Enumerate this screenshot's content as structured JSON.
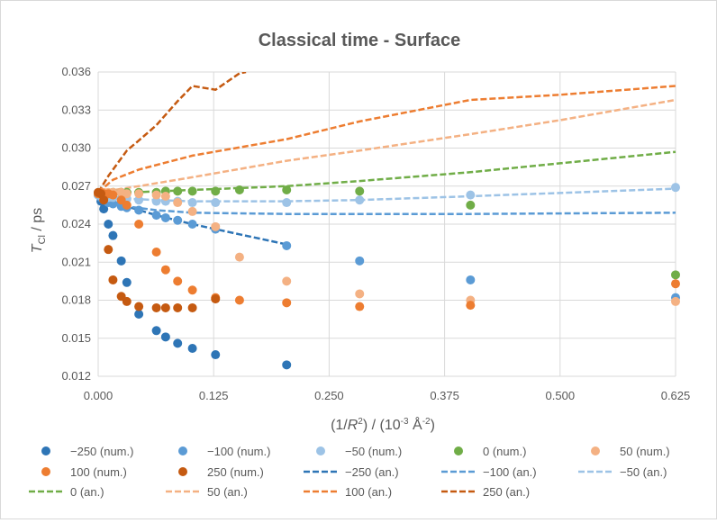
{
  "chart_data": {
    "type": "scatter",
    "title": "Classical time - Surface",
    "ylabel": "T_Cl / ps",
    "xlabel": "(1/R²) / (10⁻³ Å⁻²)",
    "xlim": [
      0,
      0.625
    ],
    "ylim": [
      0.012,
      0.036
    ],
    "x_ticks": [
      "0.000",
      "0.125",
      "0.250",
      "0.375",
      "0.500",
      "0.625"
    ],
    "y_ticks": [
      "0.012",
      "0.015",
      "0.018",
      "0.021",
      "0.024",
      "0.027",
      "0.030",
      "0.033",
      "0.036"
    ],
    "grid": true,
    "legend_position": "bottom",
    "series": [
      {
        "name": "−250 (num.)",
        "kind": "points",
        "color": "#2e75b6",
        "points": [
          [
            0,
            0.0263
          ],
          [
            0.003,
            0.0258
          ],
          [
            0.006,
            0.0252
          ],
          [
            0.011,
            0.024
          ],
          [
            0.016,
            0.0231
          ],
          [
            0.025,
            0.0211
          ],
          [
            0.031,
            0.0194
          ],
          [
            0.044,
            0.0169
          ],
          [
            0.063,
            0.0156
          ],
          [
            0.073,
            0.0151
          ],
          [
            0.086,
            0.0146
          ],
          [
            0.102,
            0.0142
          ],
          [
            0.127,
            0.0137
          ],
          [
            0.204,
            0.0129
          ]
        ]
      },
      {
        "name": "−100 (num.)",
        "kind": "points",
        "color": "#5b9bd5",
        "points": [
          [
            0,
            0.0263
          ],
          [
            0.003,
            0.0261
          ],
          [
            0.006,
            0.0259
          ],
          [
            0.011,
            0.0257
          ],
          [
            0.016,
            0.0256
          ],
          [
            0.025,
            0.0254
          ],
          [
            0.031,
            0.0253
          ],
          [
            0.044,
            0.0251
          ],
          [
            0.063,
            0.0247
          ],
          [
            0.073,
            0.0245
          ],
          [
            0.086,
            0.0243
          ],
          [
            0.102,
            0.024
          ],
          [
            0.127,
            0.0236
          ],
          [
            0.204,
            0.0223
          ],
          [
            0.283,
            0.0211
          ],
          [
            0.403,
            0.0196
          ],
          [
            0.625,
            0.0182
          ]
        ]
      },
      {
        "name": "−50 (num.)",
        "kind": "points",
        "color": "#9dc3e6",
        "points": [
          [
            0,
            0.0263
          ],
          [
            0.003,
            0.0262
          ],
          [
            0.006,
            0.0262
          ],
          [
            0.011,
            0.0261
          ],
          [
            0.016,
            0.0261
          ],
          [
            0.025,
            0.026
          ],
          [
            0.031,
            0.026
          ],
          [
            0.044,
            0.0259
          ],
          [
            0.063,
            0.0258
          ],
          [
            0.073,
            0.0258
          ],
          [
            0.086,
            0.0258
          ],
          [
            0.102,
            0.0257
          ],
          [
            0.127,
            0.0257
          ],
          [
            0.204,
            0.0257
          ],
          [
            0.283,
            0.0259
          ],
          [
            0.403,
            0.0263
          ],
          [
            0.625,
            0.0269
          ]
        ]
      },
      {
        "name": "0 (num.)",
        "kind": "points",
        "color": "#70ad47",
        "points": [
          [
            0,
            0.0264
          ],
          [
            0.003,
            0.0264
          ],
          [
            0.006,
            0.0264
          ],
          [
            0.011,
            0.0264
          ],
          [
            0.016,
            0.0265
          ],
          [
            0.025,
            0.0265
          ],
          [
            0.031,
            0.0265
          ],
          [
            0.044,
            0.0265
          ],
          [
            0.063,
            0.0265
          ],
          [
            0.073,
            0.0266
          ],
          [
            0.086,
            0.0266
          ],
          [
            0.102,
            0.0266
          ],
          [
            0.127,
            0.0266
          ],
          [
            0.153,
            0.0267
          ],
          [
            0.204,
            0.0267
          ],
          [
            0.283,
            0.0266
          ],
          [
            0.403,
            0.0255
          ],
          [
            0.625,
            0.02
          ]
        ]
      },
      {
        "name": "50 (num.)",
        "kind": "points",
        "color": "#f4b183",
        "points": [
          [
            0,
            0.0264
          ],
          [
            0.003,
            0.0265
          ],
          [
            0.006,
            0.0265
          ],
          [
            0.011,
            0.0265
          ],
          [
            0.016,
            0.0265
          ],
          [
            0.025,
            0.0265
          ],
          [
            0.031,
            0.0264
          ],
          [
            0.044,
            0.0264
          ],
          [
            0.063,
            0.0263
          ],
          [
            0.073,
            0.0262
          ],
          [
            0.086,
            0.0257
          ],
          [
            0.102,
            0.025
          ],
          [
            0.127,
            0.0238
          ],
          [
            0.153,
            0.0214
          ],
          [
            0.204,
            0.0195
          ],
          [
            0.283,
            0.0185
          ],
          [
            0.403,
            0.018
          ],
          [
            0.625,
            0.0179
          ]
        ]
      },
      {
        "name": "100 (num.)",
        "kind": "points",
        "color": "#ed7d31",
        "points": [
          [
            0,
            0.0264
          ],
          [
            0.003,
            0.0265
          ],
          [
            0.006,
            0.0264
          ],
          [
            0.011,
            0.0264
          ],
          [
            0.016,
            0.0263
          ],
          [
            0.025,
            0.0259
          ],
          [
            0.031,
            0.0255
          ],
          [
            0.044,
            0.024
          ],
          [
            0.063,
            0.0218
          ],
          [
            0.073,
            0.0204
          ],
          [
            0.086,
            0.0195
          ],
          [
            0.102,
            0.0188
          ],
          [
            0.127,
            0.0182
          ],
          [
            0.153,
            0.018
          ],
          [
            0.204,
            0.0178
          ],
          [
            0.283,
            0.0175
          ],
          [
            0.403,
            0.0176
          ],
          [
            0.625,
            0.0193
          ]
        ]
      },
      {
        "name": "250 (num.)",
        "kind": "points",
        "color": "#c55a11",
        "points": [
          [
            0,
            0.0265
          ],
          [
            0.003,
            0.0264
          ],
          [
            0.006,
            0.0259
          ],
          [
            0.011,
            0.022
          ],
          [
            0.016,
            0.0196
          ],
          [
            0.025,
            0.0183
          ],
          [
            0.031,
            0.0179
          ],
          [
            0.044,
            0.0175
          ],
          [
            0.063,
            0.0174
          ],
          [
            0.073,
            0.0174
          ],
          [
            0.086,
            0.0174
          ],
          [
            0.102,
            0.0174
          ],
          [
            0.127,
            0.0181
          ]
        ]
      },
      {
        "name": "−250 (an.)",
        "kind": "dash",
        "color": "#2e75b6",
        "points": [
          [
            0,
            0.0264
          ],
          [
            0.016,
            0.0258
          ],
          [
            0.031,
            0.0254
          ],
          [
            0.063,
            0.0247
          ],
          [
            0.102,
            0.024
          ],
          [
            0.127,
            0.0236
          ],
          [
            0.153,
            0.0232
          ],
          [
            0.204,
            0.0224
          ]
        ]
      },
      {
        "name": "−100 (an.)",
        "kind": "dash",
        "color": "#5b9bd5",
        "points": [
          [
            0,
            0.0262
          ],
          [
            0.031,
            0.0254
          ],
          [
            0.063,
            0.0251
          ],
          [
            0.102,
            0.0249
          ],
          [
            0.204,
            0.0248
          ],
          [
            0.283,
            0.0248
          ],
          [
            0.403,
            0.0248
          ],
          [
            0.625,
            0.0249
          ]
        ]
      },
      {
        "name": "−50 (an.)",
        "kind": "dash",
        "color": "#9dc3e6",
        "points": [
          [
            0,
            0.0264
          ],
          [
            0.031,
            0.026
          ],
          [
            0.063,
            0.0259
          ],
          [
            0.102,
            0.0258
          ],
          [
            0.204,
            0.0258
          ],
          [
            0.283,
            0.0259
          ],
          [
            0.403,
            0.0262
          ],
          [
            0.625,
            0.0268
          ]
        ]
      },
      {
        "name": "0 (an.)",
        "kind": "dash",
        "color": "#70ad47",
        "points": [
          [
            0,
            0.0264
          ],
          [
            0.102,
            0.0267
          ],
          [
            0.204,
            0.027
          ],
          [
            0.283,
            0.0274
          ],
          [
            0.403,
            0.0281
          ],
          [
            0.5,
            0.0288
          ],
          [
            0.625,
            0.0297
          ]
        ]
      },
      {
        "name": "50 (an.)",
        "kind": "dash",
        "color": "#f4b183",
        "points": [
          [
            0,
            0.0265
          ],
          [
            0.044,
            0.027
          ],
          [
            0.102,
            0.0277
          ],
          [
            0.204,
            0.029
          ],
          [
            0.283,
            0.0298
          ],
          [
            0.403,
            0.0311
          ],
          [
            0.5,
            0.0322
          ],
          [
            0.625,
            0.0338
          ]
        ]
      },
      {
        "name": "100 (an.)",
        "kind": "dash",
        "color": "#ed7d31",
        "points": [
          [
            0,
            0.0265
          ],
          [
            0.016,
            0.0275
          ],
          [
            0.044,
            0.0283
          ],
          [
            0.102,
            0.0294
          ],
          [
            0.204,
            0.0307
          ],
          [
            0.283,
            0.0321
          ],
          [
            0.403,
            0.0338
          ],
          [
            0.5,
            0.0342
          ],
          [
            0.625,
            0.0349
          ]
        ]
      },
      {
        "name": "250 (an.)",
        "kind": "dash",
        "color": "#c55a11",
        "points": [
          [
            0,
            0.0265
          ],
          [
            0.011,
            0.0278
          ],
          [
            0.031,
            0.0298
          ],
          [
            0.044,
            0.0306
          ],
          [
            0.063,
            0.0318
          ],
          [
            0.086,
            0.0337
          ],
          [
            0.102,
            0.0349
          ],
          [
            0.127,
            0.0346
          ],
          [
            0.153,
            0.0359
          ],
          [
            0.16,
            0.036
          ]
        ]
      }
    ]
  }
}
